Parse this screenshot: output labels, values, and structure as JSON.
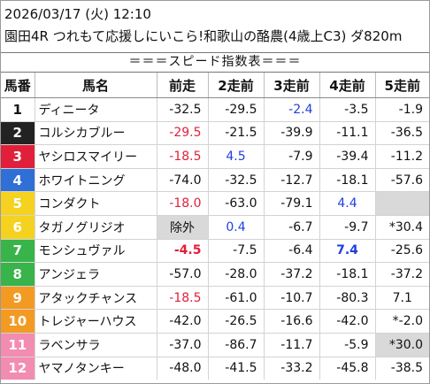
{
  "header": {
    "line1": "2026/03/17 (火) 12:10",
    "line2": "園田4R つれもて応援しにいこら!和歌山の酪農(4歳上C3) ダ820m"
  },
  "subtitle": "＝＝＝スピード指数表＝＝＝",
  "columns": [
    "馬番",
    "馬名",
    "前走",
    "2走前",
    "3走前",
    "4走前",
    "5走前"
  ],
  "colors": {
    "red": "#e0203a",
    "blue": "#1f3fe0",
    "grey_cell": "#d9d9d9",
    "frame_colors": [
      "#ffffff",
      "#222222",
      "#e0203a",
      "#2f6fd6",
      "#f5d21f",
      "#38b44a",
      "#f39a23",
      "#f28cb1"
    ]
  },
  "rows": [
    {
      "num": "1",
      "name": "ディニータ",
      "bg": "#ffffff",
      "fg": "#111111",
      "cells": [
        {
          "t": "-32.5"
        },
        {
          "t": "-29.5"
        },
        {
          "t": "-2.4",
          "c": "blue"
        },
        {
          "t": "-3.5"
        },
        {
          "t": "-1.9"
        }
      ]
    },
    {
      "num": "2",
      "name": "コルシカブルー",
      "bg": "#222222",
      "fg": "#ffffff",
      "cells": [
        {
          "t": "-29.5",
          "c": "red"
        },
        {
          "t": "-21.5"
        },
        {
          "t": "-39.9"
        },
        {
          "t": "-11.1"
        },
        {
          "t": "-36.5"
        }
      ]
    },
    {
      "num": "3",
      "name": "ヤシロスマイリー",
      "bg": "#e0203a",
      "fg": "#ffffff",
      "cells": [
        {
          "t": "-18.5",
          "c": "red"
        },
        {
          "t": "4.5",
          "c": "blue",
          "a": "center"
        },
        {
          "t": "-7.9"
        },
        {
          "t": "-39.4"
        },
        {
          "t": "-11.2"
        }
      ]
    },
    {
      "num": "4",
      "name": "ホワイトニング",
      "bg": "#2f6fd6",
      "fg": "#ffffff",
      "cells": [
        {
          "t": "-74.0"
        },
        {
          "t": "-32.5"
        },
        {
          "t": "-12.7"
        },
        {
          "t": "-18.1"
        },
        {
          "t": "-57.6"
        }
      ]
    },
    {
      "num": "5",
      "name": "コンダクト",
      "bg": "#f5d21f",
      "fg": "#ffffff",
      "cells": [
        {
          "t": "-18.0",
          "c": "red"
        },
        {
          "t": "-63.0"
        },
        {
          "t": "-79.1"
        },
        {
          "t": "4.4",
          "c": "blue",
          "a": "center"
        },
        {
          "t": "",
          "g": true
        }
      ]
    },
    {
      "num": "6",
      "name": "タガノグリジオ",
      "bg": "#f5d21f",
      "fg": "#ffffff",
      "cells": [
        {
          "t": "除外",
          "g": true,
          "a": "center"
        },
        {
          "t": "0.4",
          "c": "blue",
          "a": "center"
        },
        {
          "t": "-6.7"
        },
        {
          "t": "-9.7"
        },
        {
          "t": "*30.4"
        }
      ]
    },
    {
      "num": "7",
      "name": "モンシュヴァル",
      "bg": "#38b44a",
      "fg": "#ffffff",
      "cells": [
        {
          "t": "-4.5",
          "c": "red",
          "b": true
        },
        {
          "t": "-7.5"
        },
        {
          "t": "-6.4"
        },
        {
          "t": "7.4",
          "c": "blue",
          "b": true,
          "a": "center"
        },
        {
          "t": "-25.6"
        }
      ]
    },
    {
      "num": "8",
      "name": "アンジェラ",
      "bg": "#38b44a",
      "fg": "#ffffff",
      "cells": [
        {
          "t": "-57.0"
        },
        {
          "t": "-28.0"
        },
        {
          "t": "-37.2"
        },
        {
          "t": "-18.1"
        },
        {
          "t": "-37.2"
        }
      ]
    },
    {
      "num": "9",
      "name": "アタックチャンス",
      "bg": "#f39a23",
      "fg": "#ffffff",
      "cells": [
        {
          "t": "-18.5",
          "c": "red"
        },
        {
          "t": "-61.0"
        },
        {
          "t": "-10.7"
        },
        {
          "t": "-80.3"
        },
        {
          "t": "7.1",
          "a": "center"
        }
      ]
    },
    {
      "num": "10",
      "name": "トレジャーハウス",
      "bg": "#f39a23",
      "fg": "#ffffff",
      "cells": [
        {
          "t": "-42.0"
        },
        {
          "t": "-26.5"
        },
        {
          "t": "-16.6"
        },
        {
          "t": "-42.0"
        },
        {
          "t": "*-2.0"
        }
      ]
    },
    {
      "num": "11",
      "name": "ラベンサラ",
      "bg": "#f28cb1",
      "fg": "#ffffff",
      "cells": [
        {
          "t": "-37.0"
        },
        {
          "t": "-86.7"
        },
        {
          "t": "-11.7"
        },
        {
          "t": "-5.9"
        },
        {
          "t": "*30.0",
          "g": true
        }
      ]
    },
    {
      "num": "12",
      "name": "ヤマノタンキー",
      "bg": "#f28cb1",
      "fg": "#ffffff",
      "cells": [
        {
          "t": "-48.0"
        },
        {
          "t": "-41.5"
        },
        {
          "t": "-33.2"
        },
        {
          "t": "-45.8"
        },
        {
          "t": "-38.5"
        }
      ]
    }
  ]
}
